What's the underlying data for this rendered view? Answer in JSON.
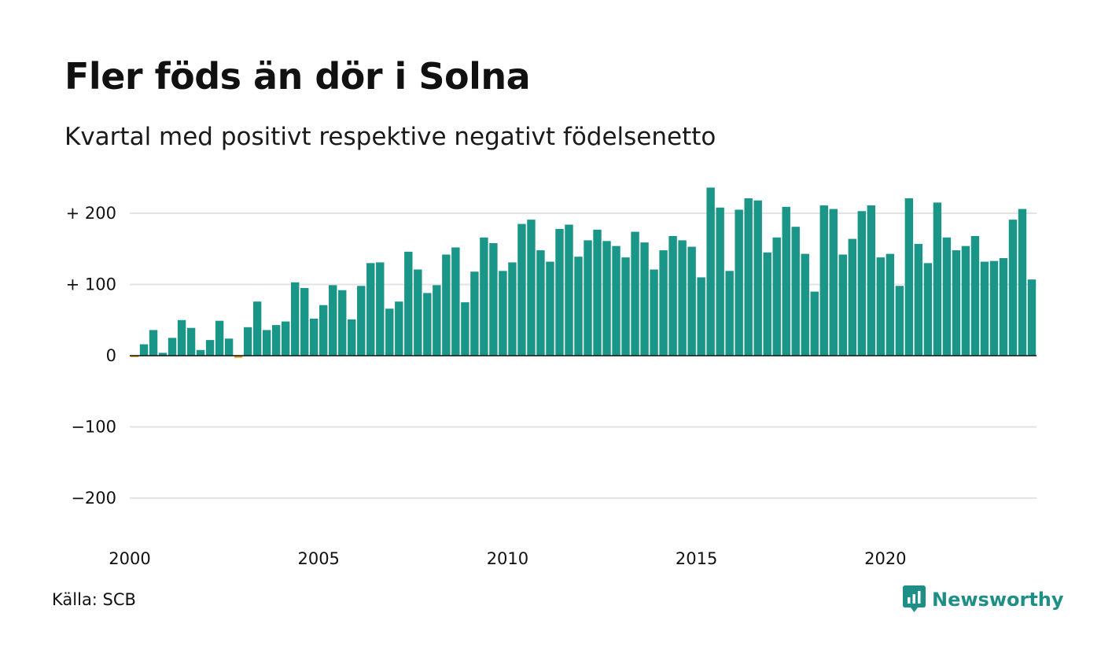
{
  "header": {
    "title": "Fler föds än dör i Solna",
    "subtitle": "Kvartal med positivt respektive negativt födelsenetto"
  },
  "footer": {
    "source": "Källa: SCB",
    "brand": "Newsworthy"
  },
  "colors": {
    "positive": "#1a9688",
    "negative": "#e8a21b",
    "grid": "#e3e3e6",
    "zero_line": "#111111",
    "brand": "#1e8f86"
  },
  "chart_data": {
    "type": "bar",
    "x_start": 2000,
    "x_end": 2024,
    "x_ticks": [
      2000,
      2005,
      2010,
      2015,
      2020
    ],
    "x_tick_labels": [
      "2000",
      "2005",
      "2010",
      "2015",
      "2020"
    ],
    "ylim": [
      -240,
      240
    ],
    "y_ticks": [
      200,
      100,
      0,
      -100,
      -200
    ],
    "y_tick_labels": [
      "+ 200",
      "+ 100",
      "0",
      "−100",
      "−200"
    ],
    "grid": true,
    "start": "2000 Q1",
    "frequency": "quarterly",
    "values": [
      -2,
      16,
      36,
      4,
      25,
      50,
      39,
      8,
      22,
      49,
      24,
      -3,
      40,
      76,
      36,
      43,
      48,
      103,
      95,
      52,
      71,
      99,
      92,
      51,
      98,
      130,
      131,
      66,
      76,
      146,
      121,
      88,
      99,
      142,
      152,
      75,
      118,
      166,
      158,
      119,
      131,
      185,
      191,
      148,
      132,
      178,
      184,
      139,
      162,
      177,
      161,
      154,
      138,
      174,
      159,
      121,
      148,
      168,
      162,
      153,
      110,
      236,
      208,
      119,
      205,
      221,
      218,
      145,
      166,
      209,
      181,
      143,
      90,
      211,
      206,
      142,
      164,
      203,
      211,
      138,
      143,
      98,
      221,
      157,
      130,
      215,
      166,
      148,
      154,
      168,
      132,
      133,
      137,
      191,
      206,
      107
    ]
  }
}
